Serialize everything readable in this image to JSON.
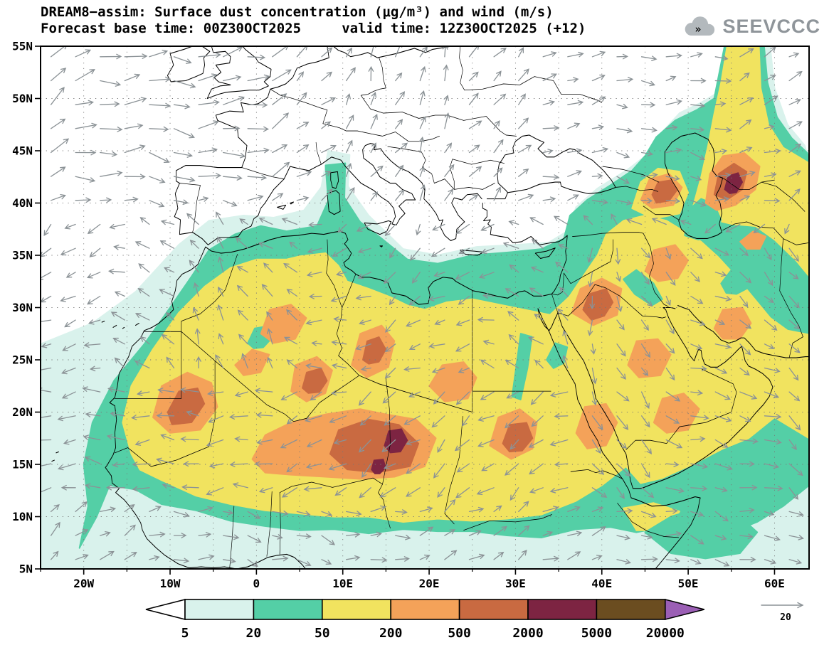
{
  "header": {
    "title": "DREAM8−assim: Surface dust concentration (μg/m³) and wind (m/s)",
    "subtitle": "Forecast base time: 00Z30OCT2025     valid time: 12Z30OCT2025 (+12)",
    "logo": "SEEVCCC"
  },
  "chart_data": {
    "type": "heatmap",
    "title": "DREAM8−assim: Surface dust concentration (μg/m³) and wind (m/s)",
    "model": "DREAM8−assim",
    "field": "Surface dust concentration",
    "field_units": "μg/m³",
    "wind_units": "m/s",
    "forecast_base_time": "00Z30OCT2025",
    "valid_time": "12Z30OCT2025",
    "forecast_lead": "+12",
    "lon_range": [
      -25,
      64
    ],
    "lat_range": [
      5,
      55
    ],
    "grid_interval_deg": 5,
    "x_axis": {
      "ticks": [
        {
          "label": "20W",
          "lon": -20
        },
        {
          "label": "10W",
          "lon": -10
        },
        {
          "label": "0",
          "lon": 0
        },
        {
          "label": "10E",
          "lon": 10
        },
        {
          "label": "20E",
          "lon": 20
        },
        {
          "label": "30E",
          "lon": 30
        },
        {
          "label": "40E",
          "lon": 40
        },
        {
          "label": "50E",
          "lon": 50
        },
        {
          "label": "60E",
          "lon": 60
        }
      ]
    },
    "y_axis": {
      "ticks": [
        {
          "label": "55N",
          "lat": 55
        },
        {
          "label": "50N",
          "lat": 50
        },
        {
          "label": "45N",
          "lat": 45
        },
        {
          "label": "40N",
          "lat": 40
        },
        {
          "label": "35N",
          "lat": 35
        },
        {
          "label": "30N",
          "lat": 30
        },
        {
          "label": "25N",
          "lat": 25
        },
        {
          "label": "20N",
          "lat": 20
        },
        {
          "label": "15N",
          "lat": 15
        },
        {
          "label": "10N",
          "lat": 10
        },
        {
          "label": "5N",
          "lat": 5
        }
      ]
    },
    "colorbar": {
      "levels": [
        5,
        20,
        50,
        200,
        500,
        2000,
        5000,
        20000
      ],
      "colors": [
        "#ffffff",
        "#d9f2ec",
        "#54cfa6",
        "#f1e35f",
        "#f4a259",
        "#c96a41",
        "#7d2442",
        "#6b4d20",
        "#9b5fb5"
      ],
      "units": "μg/m³",
      "position": "bottom"
    },
    "wind_reference": {
      "value": "20",
      "units": "m/s"
    },
    "dust_maxima": [
      {
        "area": "Bodele Depression, Chad (~16E, 17.5N)",
        "range": "2000-5000"
      },
      {
        "area": "SW Chad (~14E, 15N)",
        "range": "2000-5000"
      },
      {
        "area": "East of Caspian Sea (~55E, 42N)",
        "range": "2000-5000"
      },
      {
        "area": "Mauritania/Mali (~-8E, 20.5N)",
        "range": "500-2000"
      },
      {
        "area": "Central Sahara Niger/Chad belt (9-18E, 14-19N)",
        "range": "500-2000"
      },
      {
        "area": "NW Saudi Arabia / Jordan (~39E, 30N)",
        "range": "500-2000"
      },
      {
        "area": "Caucasus / Azerbaijan (~47E, 41N)",
        "range": "500-2000"
      },
      {
        "area": "NE Sudan (~30E, 17.5N)",
        "range": "500-2000"
      }
    ]
  }
}
